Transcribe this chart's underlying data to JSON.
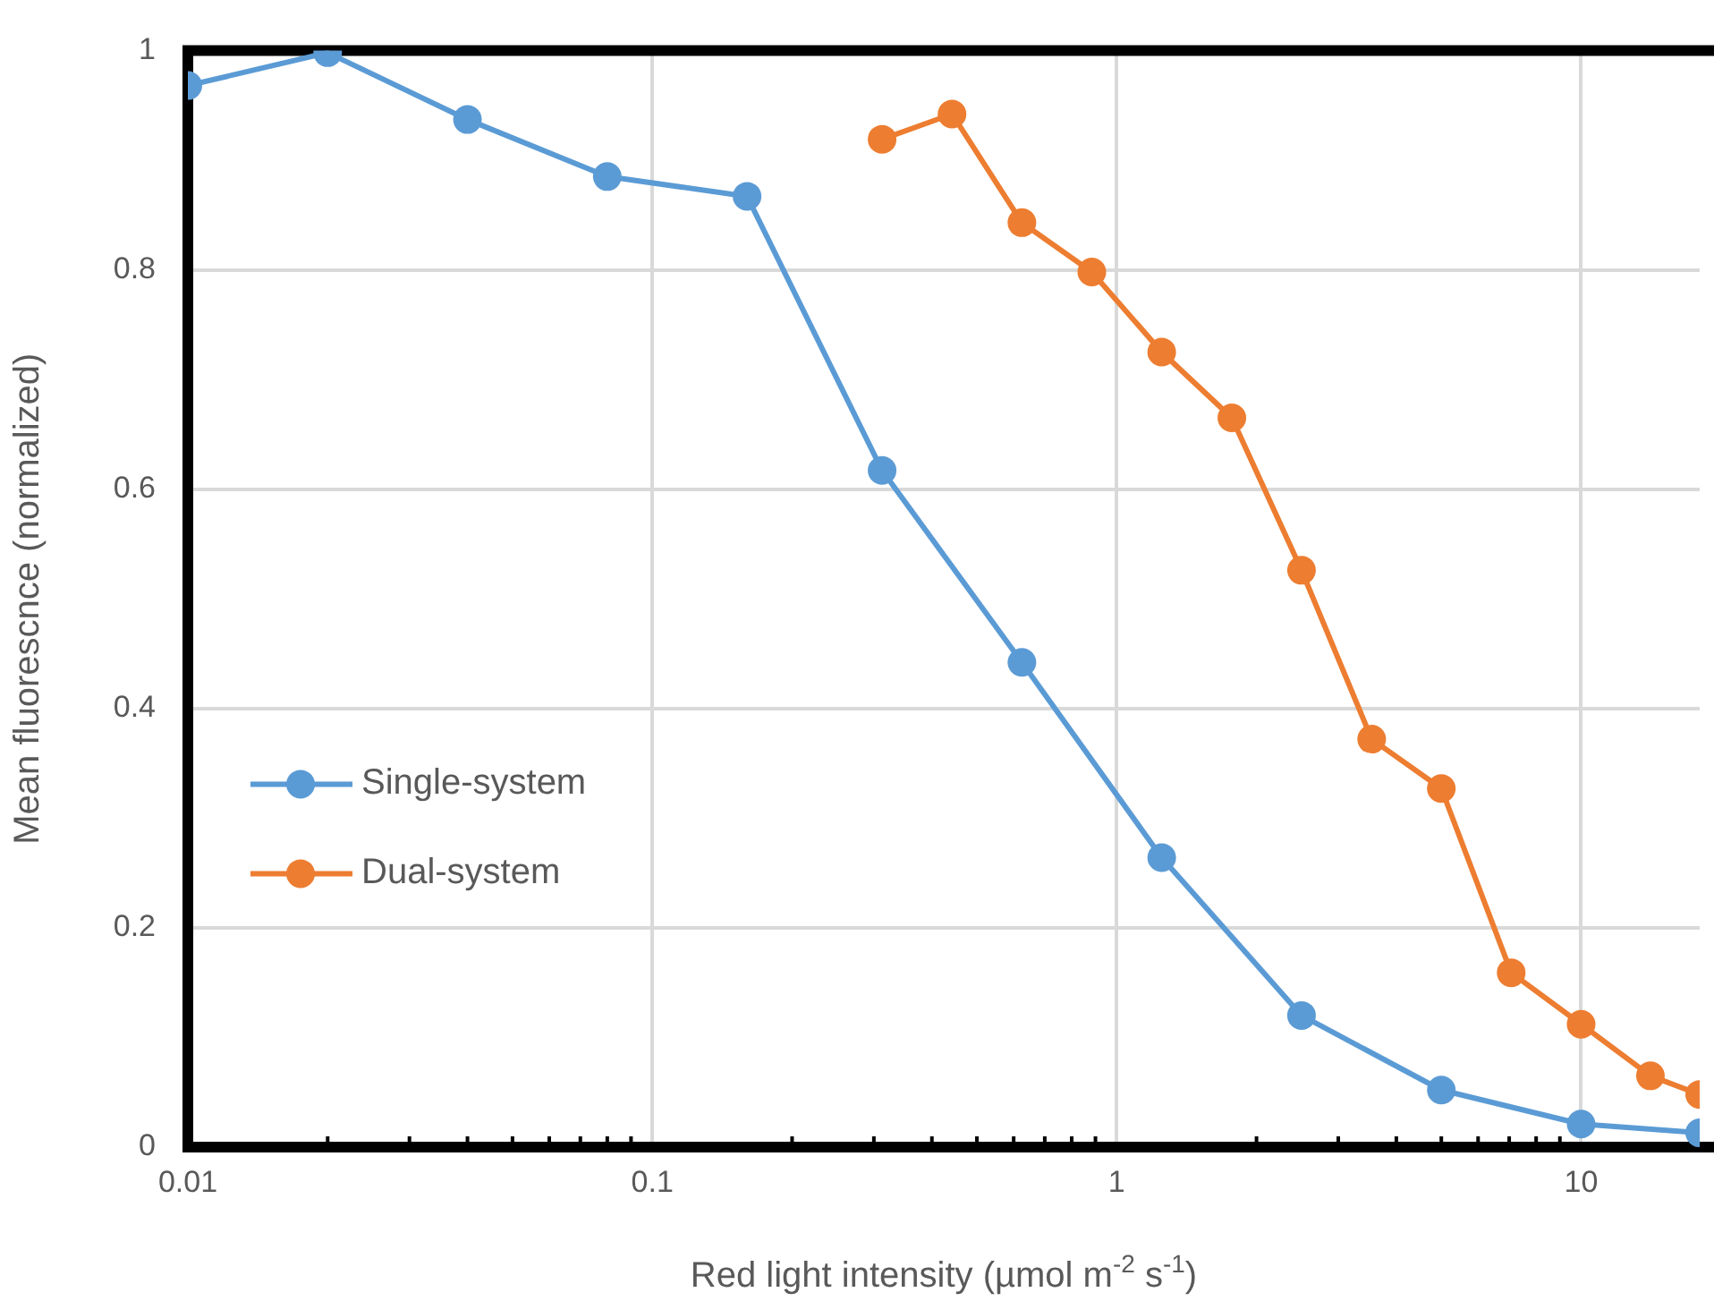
{
  "chart_data": {
    "type": "line",
    "xlabel": "Red light intensity (µmol m$^{-2}$ s$^{-1}$)",
    "ylabel": "Mean fluorescnce (normalized)",
    "log": "x",
    "grid": true,
    "legend": "left",
    "marker": "circle",
    "line_style": "solid",
    "xlim": [
      0.01,
      18
    ],
    "ylim": [
      0,
      1
    ],
    "xticks": [
      0.01,
      {
        "value": 0.02,
        "label": null
      },
      {
        "value": 0.03,
        "label": null
      },
      {
        "value": 0.04,
        "label": null
      },
      {
        "value": 0.05,
        "label": null
      },
      {
        "value": 0.06,
        "label": null
      },
      {
        "value": 0.07,
        "label": null
      },
      {
        "value": 0.08,
        "label": null
      },
      {
        "value": 0.09,
        "label": null
      },
      0.1,
      {
        "value": 0.2,
        "label": null
      },
      {
        "value": 0.3,
        "label": null
      },
      {
        "value": 0.4,
        "label": null
      },
      {
        "value": 0.5,
        "label": null
      },
      {
        "value": 0.6,
        "label": null
      },
      {
        "value": 0.7,
        "label": null
      },
      {
        "value": 0.8,
        "label": null
      },
      {
        "value": 0.9,
        "label": null
      },
      1,
      {
        "value": 2,
        "label": null
      },
      {
        "value": 3,
        "label": null
      },
      {
        "value": 4,
        "label": null
      },
      {
        "value": 5,
        "label": null
      },
      {
        "value": 6,
        "label": null
      },
      {
        "value": 7,
        "label": null
      },
      {
        "value": 8,
        "label": null
      },
      {
        "value": 9,
        "label": null
      },
      10
    ],
    "yticks": [
      0,
      0.2,
      0.4,
      0.6,
      0.8,
      1
    ],
    "series": [
      {
        "name": "Single-system",
        "color": "#5b9bd5",
        "x": [
          0.01,
          0.02,
          0.04,
          0.08,
          0.16,
          0.3125,
          0.625,
          1.25,
          2.5,
          5,
          10,
          18
        ],
        "values": [
          0.968,
          0.998,
          0.937,
          0.885,
          0.867,
          0.617,
          0.442,
          0.264,
          0.12,
          0.052,
          0.021,
          0.013
        ]
      },
      {
        "name": "Dual-system",
        "color": "#ed7d31",
        "x": [
          0.3125,
          0.442,
          0.625,
          0.884,
          1.25,
          1.77,
          2.5,
          3.54,
          5,
          7.07,
          10,
          14.1,
          18
        ],
        "values": [
          0.919,
          0.942,
          0.843,
          0.798,
          0.725,
          0.665,
          0.526,
          0.372,
          0.327,
          0.159,
          0.112,
          0.065,
          0.048
        ]
      }
    ]
  }
}
